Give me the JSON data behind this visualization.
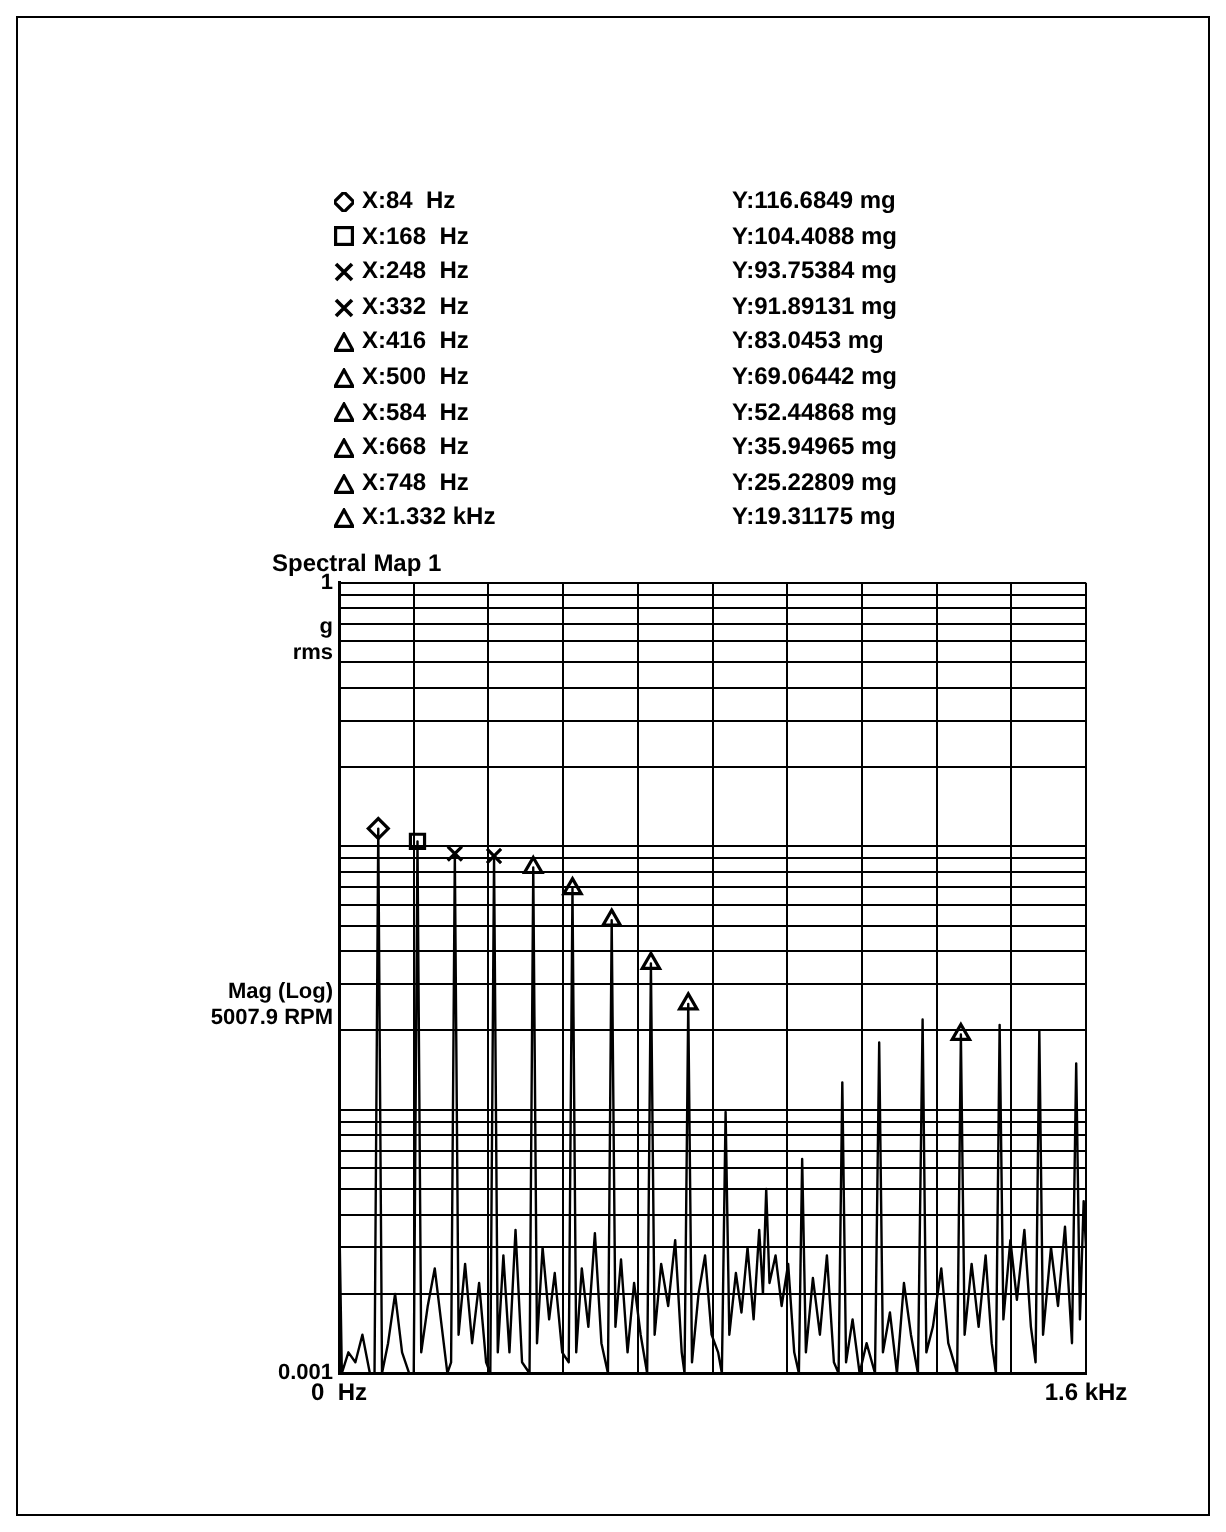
{
  "chart_data": {
    "type": "line",
    "title": "Spectral Map 1",
    "ylabel": "g rms",
    "log": "y",
    "grid": true,
    "legend": false,
    "xlim": [
      0,
      1.6
    ],
    "xticks": [
      {
        "value": 0,
        "label": "0  Hz"
      },
      {
        "value": 0.16,
        "label": null
      },
      {
        "value": 0.32,
        "label": null
      },
      {
        "value": 0.48,
        "label": null
      },
      {
        "value": 0.64,
        "label": null
      },
      {
        "value": 0.8,
        "label": null
      },
      {
        "value": 0.96,
        "label": null
      },
      {
        "value": 1.12,
        "label": null
      },
      {
        "value": 1.28,
        "label": null
      },
      {
        "value": 1.44,
        "label": null
      },
      {
        "value": 1.6,
        "label": "1.6 kHz"
      }
    ],
    "ylim": [
      0.001,
      1
    ],
    "yticks": [
      {
        "value": 0.001,
        "label": "0.001"
      },
      {
        "value": 0.002,
        "label": null
      },
      {
        "value": 0.003,
        "label": null
      },
      {
        "value": 0.004,
        "label": null
      },
      {
        "value": 0.005,
        "label": null
      },
      {
        "value": 0.006,
        "label": null
      },
      {
        "value": 0.007,
        "label": null
      },
      {
        "value": 0.008,
        "label": null
      },
      {
        "value": 0.009,
        "label": null
      },
      {
        "value": 0.01,
        "label": null
      },
      {
        "value": 0.02,
        "label": null
      },
      {
        "value": 0.03,
        "label": null
      },
      {
        "value": 0.04,
        "label": null
      },
      {
        "value": 0.05,
        "label": null
      },
      {
        "value": 0.06,
        "label": null
      },
      {
        "value": 0.07,
        "label": null
      },
      {
        "value": 0.08,
        "label": null
      },
      {
        "value": 0.09,
        "label": null
      },
      {
        "value": 0.1,
        "label": null
      },
      {
        "value": 0.2,
        "label": null
      },
      {
        "value": 0.3,
        "label": null
      },
      {
        "value": 0.4,
        "label": null
      },
      {
        "value": 0.5,
        "label": null
      },
      {
        "value": 0.6,
        "label": null
      },
      {
        "value": 0.7,
        "label": null
      },
      {
        "value": 0.8,
        "label": null
      },
      {
        "value": 0.9,
        "label": null
      },
      {
        "value": 1,
        "label": "1"
      }
    ],
    "annotations": [
      "X:84  Hz",
      "Y:116.6849 mg",
      "X:168  Hz",
      "Y:104.4088 mg",
      "X:248  Hz",
      "Y:93.75384 mg",
      "X:332  Hz",
      "Y:91.89131 mg",
      "X:416  Hz",
      "Y:83.0453 mg",
      "X:500  Hz",
      "Y:69.06442 mg",
      "X:584  Hz",
      "Y:52.44868 mg",
      "X:668  Hz",
      "Y:35.94965 mg",
      "X:748  Hz",
      "Y:25.22809 mg",
      "X:1.332 kHz",
      "Y:19.31175 mg",
      "Mag (Log)",
      "5007.9 RPM"
    ],
    "series": [
      {
        "type": "line",
        "color": "#000000",
        "marker": "none",
        "x": [
          0,
          0.006,
          0.02,
          0.035,
          0.05,
          0.066,
          0.076,
          0.084,
          0.092,
          0.105,
          0.12,
          0.135,
          0.15,
          0.16,
          0.168,
          0.176,
          0.19,
          0.205,
          0.22,
          0.232,
          0.24,
          0.248,
          0.256,
          0.27,
          0.285,
          0.3,
          0.315,
          0.324,
          0.332,
          0.34,
          0.352,
          0.365,
          0.378,
          0.392,
          0.408,
          0.416,
          0.424,
          0.436,
          0.45,
          0.462,
          0.478,
          0.492,
          0.5,
          0.508,
          0.52,
          0.534,
          0.548,
          0.562,
          0.576,
          0.584,
          0.592,
          0.604,
          0.618,
          0.632,
          0.646,
          0.66,
          0.668,
          0.676,
          0.69,
          0.705,
          0.72,
          0.734,
          0.74,
          0.748,
          0.756,
          0.77,
          0.784,
          0.798,
          0.812,
          0.82,
          0.828,
          0.836,
          0.85,
          0.862,
          0.875,
          0.888,
          0.9,
          0.908,
          0.915,
          0.922,
          0.935,
          0.948,
          0.962,
          0.975,
          0.985,
          0.992,
          1,
          1.015,
          1.03,
          1.045,
          1.06,
          1.07,
          1.078,
          1.086,
          1.1,
          1.115,
          1.13,
          1.148,
          1.157,
          1.165,
          1.18,
          1.195,
          1.21,
          1.225,
          1.24,
          1.25,
          1.258,
          1.272,
          1.29,
          1.305,
          1.324,
          1.332,
          1.34,
          1.355,
          1.37,
          1.385,
          1.398,
          1.407,
          1.415,
          1.423,
          1.438,
          1.452,
          1.468,
          1.482,
          1.492,
          1.5,
          1.508,
          1.525,
          1.54,
          1.555,
          1.57,
          1.579,
          1.587,
          1.595,
          1.6
        ],
        "values": [
          0.0045,
          0.001,
          0.0012,
          0.0011,
          0.0014,
          0.001,
          0.001,
          0.1166849,
          0.001,
          0.0013,
          0.002,
          0.0012,
          0.001,
          0.001,
          0.1044088,
          0.0012,
          0.0018,
          0.0025,
          0.0015,
          0.001,
          0.0011,
          0.09375384,
          0.0014,
          0.0026,
          0.0013,
          0.0022,
          0.0011,
          0.001,
          0.09189131,
          0.0012,
          0.0028,
          0.0012,
          0.0035,
          0.0011,
          0.001,
          0.0830453,
          0.0013,
          0.003,
          0.0016,
          0.0024,
          0.0012,
          0.0011,
          0.06906442,
          0.0012,
          0.0025,
          0.0015,
          0.0034,
          0.0013,
          0.001,
          0.05244868,
          0.0015,
          0.0027,
          0.0012,
          0.0022,
          0.0014,
          0.001,
          0.03594965,
          0.0014,
          0.0026,
          0.0018,
          0.0032,
          0.0012,
          0.001,
          0.02522809,
          0.0011,
          0.002,
          0.0028,
          0.0014,
          0.0012,
          0.001,
          0.0098,
          0.0014,
          0.0024,
          0.0017,
          0.003,
          0.0016,
          0.0035,
          0.002,
          0.005,
          0.0022,
          0.0028,
          0.0018,
          0.0026,
          0.0012,
          0.001,
          0.0065,
          0.0012,
          0.0023,
          0.0014,
          0.0028,
          0.0011,
          0.001,
          0.0127,
          0.0011,
          0.0016,
          0.001,
          0.0013,
          0.001,
          0.018,
          0.0012,
          0.0017,
          0.001,
          0.0022,
          0.0014,
          0.001,
          0.022,
          0.0012,
          0.0015,
          0.0025,
          0.0013,
          0.001,
          0.01931175,
          0.0014,
          0.0026,
          0.0015,
          0.0028,
          0.0013,
          0.001,
          0.021,
          0.0016,
          0.0032,
          0.0019,
          0.0035,
          0.0015,
          0.0011,
          0.02,
          0.0014,
          0.003,
          0.0018,
          0.0036,
          0.0013,
          0.015,
          0.0016,
          0.0045,
          0.003
        ]
      },
      {
        "type": "scatter",
        "color": "#000000",
        "marker": "diamond",
        "x": [
          0.084
        ],
        "values": [
          0.1166849
        ]
      },
      {
        "type": "scatter",
        "color": "#000000",
        "marker": "square",
        "x": [
          0.168
        ],
        "values": [
          0.1044088
        ]
      },
      {
        "type": "scatter",
        "color": "#000000",
        "marker": "cross",
        "x": [
          0.248
        ],
        "values": [
          0.09375384
        ]
      },
      {
        "type": "scatter",
        "color": "#000000",
        "marker": "cross",
        "x": [
          0.332
        ],
        "values": [
          0.09189131
        ]
      },
      {
        "type": "scatter",
        "color": "#000000",
        "marker": "triangle",
        "x": [
          0.416
        ],
        "values": [
          0.0830453
        ]
      },
      {
        "type": "scatter",
        "color": "#000000",
        "marker": "triangle",
        "x": [
          0.5
        ],
        "values": [
          0.06906442
        ]
      },
      {
        "type": "scatter",
        "color": "#000000",
        "marker": "triangle",
        "x": [
          0.584
        ],
        "values": [
          0.05244868
        ]
      },
      {
        "type": "scatter",
        "color": "#000000",
        "marker": "triangle",
        "x": [
          0.668
        ],
        "values": [
          0.03594965
        ]
      },
      {
        "type": "scatter",
        "color": "#000000",
        "marker": "triangle",
        "x": [
          0.748
        ],
        "values": [
          0.02522809
        ]
      },
      {
        "type": "scatter",
        "color": "#000000",
        "marker": "triangle",
        "x": [
          1.332
        ],
        "values": [
          0.01931175
        ]
      }
    ]
  }
}
